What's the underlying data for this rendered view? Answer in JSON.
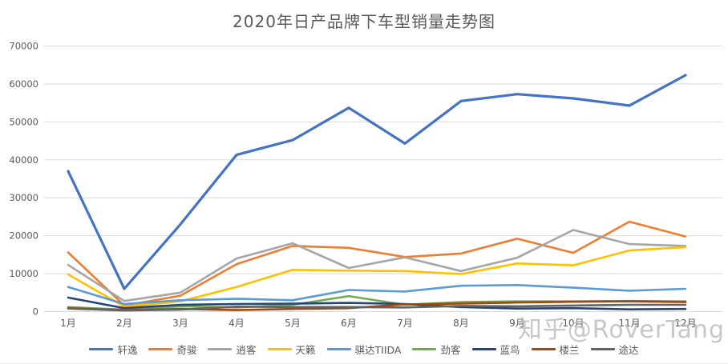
{
  "chart": {
    "title": "2020年日产品牌下车型销量走势图"
  },
  "watermark": {
    "text": "知乎@RoverTang"
  },
  "chart_data": {
    "type": "line",
    "title": "2020年日产品牌下车型销量走势图",
    "categories": [
      "1月",
      "2月",
      "3月",
      "4月",
      "5月",
      "6月",
      "7月",
      "8月",
      "9月",
      "10月",
      "11月",
      "12月"
    ],
    "series": [
      {
        "name": "轩逸",
        "color": "#4472C4",
        "values": [
          37000,
          6000,
          23000,
          41300,
          45200,
          53700,
          44300,
          55500,
          57300,
          56200,
          54300,
          62300
        ]
      },
      {
        "name": "奇骏",
        "color": "#ED7D31",
        "values": [
          15600,
          1600,
          4200,
          12500,
          17300,
          16800,
          14400,
          15300,
          19200,
          15500,
          23700,
          19800
        ]
      },
      {
        "name": "逍客",
        "color": "#A5A5A5",
        "values": [
          12300,
          2800,
          5000,
          14000,
          18000,
          11500,
          14300,
          10700,
          14200,
          21500,
          17800,
          17300
        ]
      },
      {
        "name": "天籁",
        "color": "#FFC000",
        "values": [
          9800,
          1300,
          2700,
          6500,
          11000,
          10800,
          10700,
          9900,
          12700,
          12200,
          16100,
          17000
        ]
      },
      {
        "name": "骐达TIIDA",
        "color": "#5B9BD5",
        "values": [
          6500,
          2000,
          3000,
          3400,
          3000,
          5700,
          5300,
          6800,
          7000,
          6300,
          5500,
          6000
        ]
      },
      {
        "name": "劲客",
        "color": "#70AD47",
        "values": [
          1200,
          500,
          1400,
          1100,
          1800,
          4100,
          1800,
          2500,
          2700,
          2700,
          2800,
          2700
        ]
      },
      {
        "name": "蓝鸟",
        "color": "#264478",
        "values": [
          3700,
          900,
          1800,
          2000,
          2100,
          2300,
          2000,
          1200,
          800,
          900,
          600,
          700
        ]
      },
      {
        "name": "楼兰",
        "color": "#9E480E",
        "values": [
          900,
          400,
          700,
          400,
          700,
          900,
          1900,
          2100,
          2400,
          2600,
          2700,
          2500
        ]
      },
      {
        "name": "途达",
        "color": "#636363",
        "values": [
          800,
          300,
          500,
          1300,
          1200,
          1200,
          1100,
          1500,
          1400,
          1600,
          1800,
          1800
        ]
      }
    ],
    "xlabel": "",
    "ylabel": "",
    "ylim": [
      0,
      70000
    ],
    "yticks": [
      0,
      10000,
      20000,
      30000,
      40000,
      50000,
      60000,
      70000
    ],
    "grid": "horizontal",
    "gridline_color": "#D9D9D9",
    "axis_text_color": "#595959",
    "legend_position": "bottom"
  }
}
